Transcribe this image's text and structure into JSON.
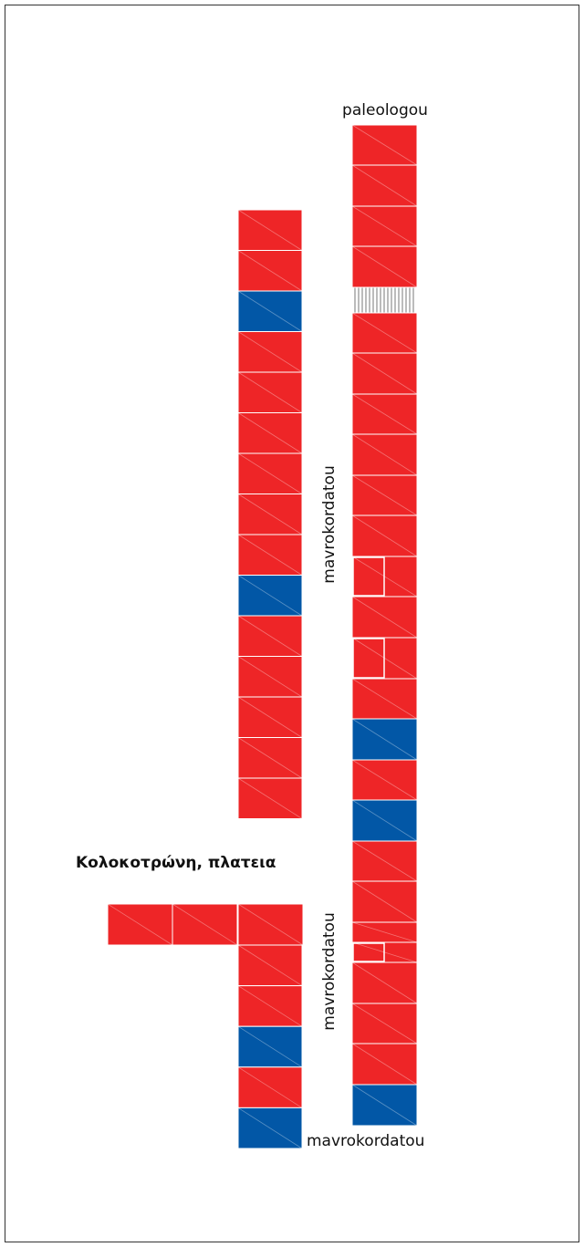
{
  "labels": {
    "top_street": "paleologou",
    "side_street_upper": "mavrokordatou",
    "side_street_lower": "mavrokordatou",
    "square": "Κολοκοτρώνη, πλατεια",
    "bottom_street": "mavrokordatou"
  }
}
